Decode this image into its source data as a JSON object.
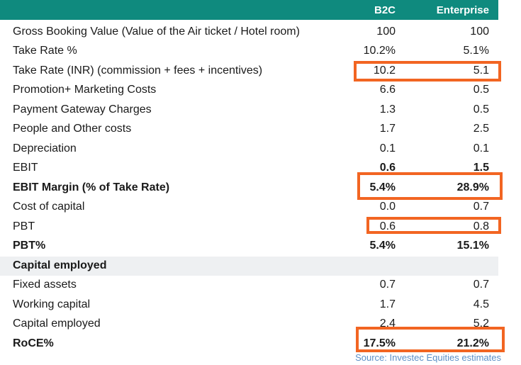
{
  "header": {
    "col1": "B2C",
    "col2": "Enterprise"
  },
  "rows": [
    {
      "label": "Gross Booking Value (Value of the Air ticket / Hotel room)",
      "b2c": "100",
      "ent": "100"
    },
    {
      "label": "Take Rate %",
      "b2c": "10.2%",
      "ent": "5.1%"
    },
    {
      "label": "Take Rate (INR) (commission + fees + incentives)",
      "b2c": "10.2",
      "ent": "5.1"
    },
    {
      "label": "Promotion+ Marketing Costs",
      "b2c": "6.6",
      "ent": "0.5"
    },
    {
      "label": "Payment Gateway Charges",
      "b2c": "1.3",
      "ent": "0.5"
    },
    {
      "label": "People and Other costs",
      "b2c": "1.7",
      "ent": "2.5"
    },
    {
      "label": "Depreciation",
      "b2c": "0.1",
      "ent": "0.1"
    },
    {
      "label": "EBIT",
      "b2c": "0.6",
      "ent": "1.5"
    },
    {
      "label": "EBIT Margin (% of Take Rate)",
      "b2c": "5.4%",
      "ent": "28.9%"
    },
    {
      "label": "Cost of capital",
      "b2c": "0.0",
      "ent": "0.7"
    },
    {
      "label": "PBT",
      "b2c": "0.6",
      "ent": "0.8"
    },
    {
      "label": "PBT%",
      "b2c": "5.4%",
      "ent": "15.1%"
    },
    {
      "label": "Capital employed",
      "b2c": "",
      "ent": ""
    },
    {
      "label": "Fixed assets",
      "b2c": "0.7",
      "ent": "0.7"
    },
    {
      "label": "Working capital",
      "b2c": "1.7",
      "ent": "4.5"
    },
    {
      "label": "Capital employed",
      "b2c": "2.4",
      "ent": "5.2"
    },
    {
      "label": "RoCE%",
      "b2c": "17.5%",
      "ent": "21.2%"
    }
  ],
  "source": "Source: Investec Equities estimates",
  "colors": {
    "header_bg": "#0f8a7e",
    "highlight": "#f26522",
    "section_bg": "#eef0f2",
    "source_text": "#5b8fc7"
  }
}
